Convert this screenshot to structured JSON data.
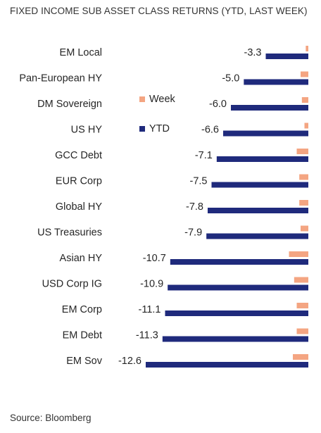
{
  "chart_data": {
    "type": "bar",
    "orientation": "horizontal",
    "title": "FIXED INCOME SUB  ASSET CLASS RETURNS (YTD, LAST WEEK)",
    "source": "Source: Bloomberg",
    "categories": [
      "EM Local",
      "Pan-European HY",
      "DM Sovereign",
      "US HY",
      "GCC Debt",
      "EUR Corp",
      "Global HY",
      "US Treasuries",
      "Asian HY",
      "USD Corp IG",
      "EM Corp",
      "EM Debt",
      "EM Sov"
    ],
    "series": [
      {
        "name": "Week",
        "color": "#F4A582",
        "values": [
          -0.2,
          -0.6,
          -0.5,
          -0.3,
          -0.9,
          -0.7,
          -0.7,
          -0.6,
          -1.5,
          -1.1,
          -0.9,
          -0.9,
          -1.2
        ]
      },
      {
        "name": "YTD",
        "color": "#1F2A7C",
        "values": [
          -3.3,
          -5.0,
          -6.0,
          -6.6,
          -7.1,
          -7.5,
          -7.8,
          -7.9,
          -10.7,
          -10.9,
          -11.1,
          -11.3,
          -12.6
        ]
      }
    ],
    "data_labels": [
      "-3.3",
      "-5.0",
      "-6.0",
      "-6.6",
      "-7.1",
      "-7.5",
      "-7.8",
      "-7.9",
      "-10.7",
      "-10.9",
      "-11.1",
      "-11.3",
      "-12.6"
    ],
    "xlim": [
      -12.6,
      0
    ],
    "legend": {
      "position": "center",
      "entries": [
        "Week",
        "YTD"
      ]
    },
    "grid": false
  }
}
